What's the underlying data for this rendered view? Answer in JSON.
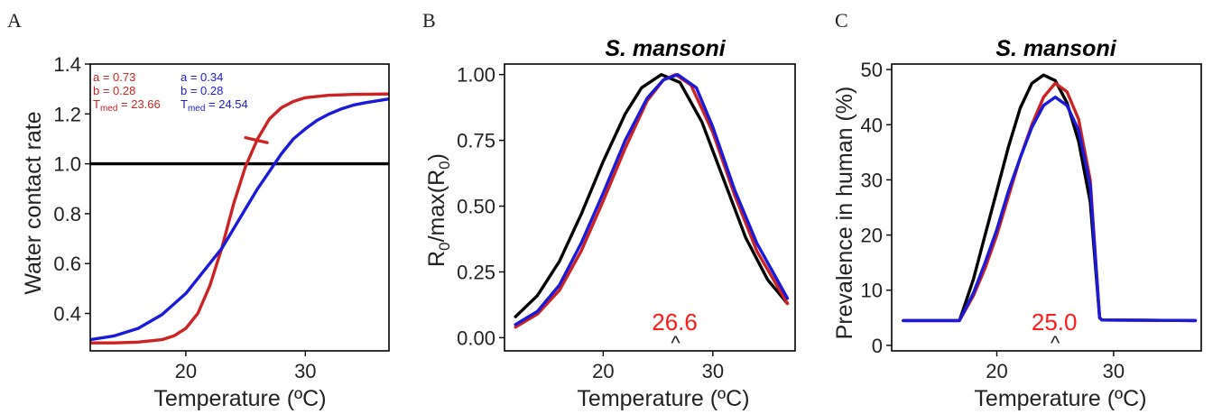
{
  "colors": {
    "red": "#cc2222",
    "blue": "#1a1adb",
    "black": "#000000",
    "annot_red": "#ff1a1a"
  },
  "chart_data": [
    {
      "panel": "A",
      "type": "line",
      "title": "",
      "xlabel": "Temperature (ºC)",
      "ylabel": "Water contact rate",
      "xlim": [
        12,
        37
      ],
      "ylim": [
        0.25,
        1.4
      ],
      "xticks": [
        "20",
        "30"
      ],
      "yticks": [
        "0.4",
        "0.6",
        "0.8",
        "1.0",
        "1.2",
        "1.4"
      ],
      "legend_red": {
        "a": "a = 0.73",
        "b": "b = 0.28",
        "tmed_label": "T",
        "tmed_sub": "med",
        "tmed_value": " = 23.66"
      },
      "legend_blue": {
        "a": "a = 0.34",
        "b": "b = 0.28",
        "tmed_label": "T",
        "tmed_sub": "med",
        "tmed_value": " = 24.54"
      },
      "series": [
        {
          "color": "black",
          "points": [
            [
              12,
              1.0
            ],
            [
              37,
              1.0
            ]
          ]
        },
        {
          "color": "red",
          "points": [
            [
              12,
              0.282
            ],
            [
              14,
              0.282
            ],
            [
              16,
              0.285
            ],
            [
              18,
              0.295
            ],
            [
              19,
              0.31
            ],
            [
              20,
              0.34
            ],
            [
              21,
              0.4
            ],
            [
              22,
              0.51
            ],
            [
              23,
              0.66
            ],
            [
              24,
              0.84
            ],
            [
              25,
              0.99
            ],
            [
              26,
              1.1
            ],
            [
              27,
              1.18
            ],
            [
              28,
              1.225
            ],
            [
              29,
              1.25
            ],
            [
              30,
              1.265
            ],
            [
              32,
              1.275
            ],
            [
              34,
              1.278
            ],
            [
              37,
              1.28
            ]
          ]
        },
        {
          "color": "blue",
          "points": [
            [
              12,
              0.295
            ],
            [
              14,
              0.31
            ],
            [
              16,
              0.34
            ],
            [
              18,
              0.395
            ],
            [
              20,
              0.48
            ],
            [
              22,
              0.6
            ],
            [
              23,
              0.66
            ],
            [
              24,
              0.74
            ],
            [
              25,
              0.82
            ],
            [
              26,
              0.9
            ],
            [
              27,
              0.97
            ],
            [
              28,
              1.04
            ],
            [
              29,
              1.1
            ],
            [
              30,
              1.14
            ],
            [
              31,
              1.175
            ],
            [
              32,
              1.2
            ],
            [
              33,
              1.22
            ],
            [
              34,
              1.235
            ],
            [
              35,
              1.245
            ],
            [
              37,
              1.26
            ]
          ]
        },
        {
          "color": "red",
          "points": [
            [
              25.0,
              1.105
            ],
            [
              26.8,
              1.085
            ]
          ]
        }
      ]
    },
    {
      "panel": "B",
      "type": "line",
      "title": "S. mansoni",
      "xlabel": "Temperature (ºC)",
      "ylabel": "R0/max(R0)",
      "ylabel_parts": {
        "r1": "R",
        "s1": "0",
        "mid": "/max(R",
        "s2": "0",
        "end": ")"
      },
      "xlim": [
        11,
        37.5
      ],
      "ylim": [
        -0.05,
        1.04
      ],
      "xticks": [
        "20",
        "30"
      ],
      "yticks": [
        "0.00",
        "0.25",
        "0.50",
        "0.75",
        "1.00"
      ],
      "annotation": {
        "text": "26.6",
        "marker": "^",
        "x": 26.6
      },
      "series": [
        {
          "color": "black",
          "points": [
            [
              12,
              0.08
            ],
            [
              14,
              0.16
            ],
            [
              16,
              0.29
            ],
            [
              18,
              0.47
            ],
            [
              20,
              0.67
            ],
            [
              22,
              0.85
            ],
            [
              23.5,
              0.95
            ],
            [
              25.3,
              1.0
            ],
            [
              27,
              0.97
            ],
            [
              29,
              0.82
            ],
            [
              31,
              0.6
            ],
            [
              33,
              0.38
            ],
            [
              35,
              0.22
            ],
            [
              36.8,
              0.13
            ]
          ]
        },
        {
          "color": "red",
          "points": [
            [
              12,
              0.04
            ],
            [
              14,
              0.09
            ],
            [
              16,
              0.18
            ],
            [
              18,
              0.33
            ],
            [
              20,
              0.52
            ],
            [
              22,
              0.72
            ],
            [
              24,
              0.9
            ],
            [
              25.5,
              0.98
            ],
            [
              26.6,
              1.0
            ],
            [
              28,
              0.96
            ],
            [
              30,
              0.78
            ],
            [
              32,
              0.54
            ],
            [
              34,
              0.33
            ],
            [
              36.8,
              0.13
            ]
          ]
        },
        {
          "color": "blue",
          "points": [
            [
              12,
              0.05
            ],
            [
              14,
              0.1
            ],
            [
              16,
              0.2
            ],
            [
              18,
              0.36
            ],
            [
              20,
              0.55
            ],
            [
              22,
              0.75
            ],
            [
              24,
              0.91
            ],
            [
              25.5,
              0.98
            ],
            [
              26.8,
              1.0
            ],
            [
              28.5,
              0.95
            ],
            [
              30,
              0.8
            ],
            [
              32,
              0.56
            ],
            [
              34,
              0.36
            ],
            [
              36.8,
              0.15
            ]
          ]
        }
      ]
    },
    {
      "panel": "C",
      "type": "line",
      "title": "S. mansoni",
      "xlabel": "Temperature (ºC)",
      "ylabel": "Prevalence in human (%)",
      "xlim": [
        11,
        37.5
      ],
      "ylim": [
        -1,
        51
      ],
      "xticks": [
        "20",
        "30"
      ],
      "yticks": [
        "0",
        "10",
        "20",
        "30",
        "40",
        "50"
      ],
      "annotation": {
        "text": "25.0",
        "marker": "^",
        "x": 25.0
      },
      "series": [
        {
          "color": "black",
          "points": [
            [
              12,
              4.5
            ],
            [
              16.8,
              4.5
            ],
            [
              18,
              12
            ],
            [
              19,
              20
            ],
            [
              20,
              28
            ],
            [
              21,
              36
            ],
            [
              22,
              43
            ],
            [
              23,
              47.5
            ],
            [
              24,
              49
            ],
            [
              25,
              48
            ],
            [
              26,
              44
            ],
            [
              27,
              37
            ],
            [
              28,
              26
            ],
            [
              28.8,
              5
            ],
            [
              29,
              4.6
            ],
            [
              37,
              4.5
            ]
          ]
        },
        {
          "color": "red",
          "points": [
            [
              12,
              4.5
            ],
            [
              16.8,
              4.5
            ],
            [
              18,
              9
            ],
            [
              19,
              14
            ],
            [
              20,
              20
            ],
            [
              21,
              27
            ],
            [
              22,
              34
            ],
            [
              23,
              40
            ],
            [
              24,
              45
            ],
            [
              25,
              47.5
            ],
            [
              26,
              46
            ],
            [
              27,
              41
            ],
            [
              28,
              30
            ],
            [
              28.8,
              5
            ],
            [
              29,
              4.6
            ],
            [
              37,
              4.5
            ]
          ]
        },
        {
          "color": "blue",
          "points": [
            [
              12,
              4.5
            ],
            [
              16.8,
              4.5
            ],
            [
              18,
              9.5
            ],
            [
              19,
              15
            ],
            [
              20,
              21
            ],
            [
              21,
              28
            ],
            [
              22,
              34
            ],
            [
              23,
              39.5
            ],
            [
              24,
              43.5
            ],
            [
              25,
              45
            ],
            [
              26,
              43.5
            ],
            [
              27,
              39
            ],
            [
              28,
              29
            ],
            [
              28.8,
              5
            ],
            [
              29,
              4.6
            ],
            [
              37,
              4.5
            ]
          ]
        }
      ]
    }
  ]
}
